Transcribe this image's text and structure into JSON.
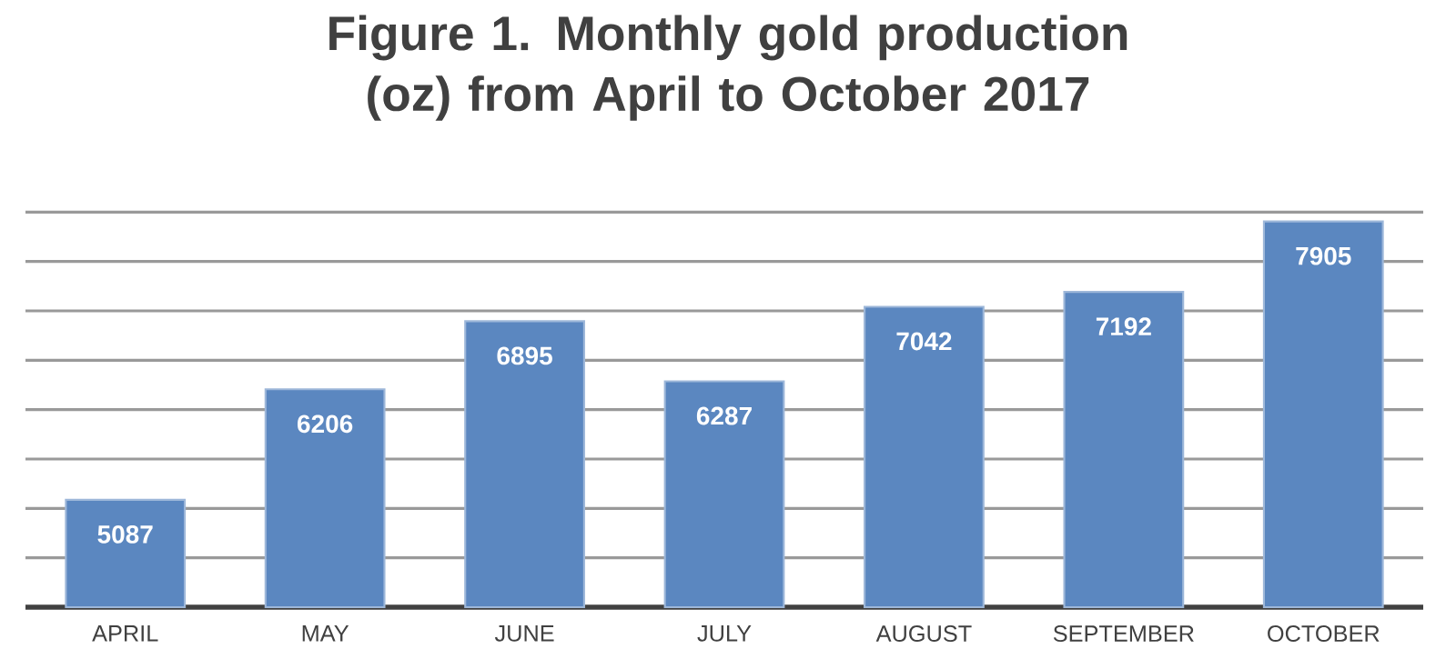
{
  "chart_data": {
    "type": "bar",
    "title": "Figure 1. Monthly gold production (oz) from April to October 2017",
    "categories": [
      "APRIL",
      "MAY",
      "JUNE",
      "JULY",
      "AUGUST",
      "SEPTEMBER",
      "OCTOBER"
    ],
    "values": [
      5087,
      6206,
      6895,
      6287,
      7042,
      7192,
      7905
    ],
    "color": "#5b87c0",
    "ylim": [
      4000,
      8000
    ],
    "yticks": [
      {
        "value": 4000,
        "label": null
      },
      {
        "value": 4500,
        "label": null
      },
      {
        "value": 5000,
        "label": null
      },
      {
        "value": 5500,
        "label": null
      },
      {
        "value": 6000,
        "label": null
      },
      {
        "value": 6500,
        "label": null
      },
      {
        "value": 7000,
        "label": null
      },
      {
        "value": 7500,
        "label": null
      },
      {
        "value": 8000,
        "label": null
      }
    ],
    "tick_labels": "x",
    "grid": "y",
    "data_labels": true
  }
}
